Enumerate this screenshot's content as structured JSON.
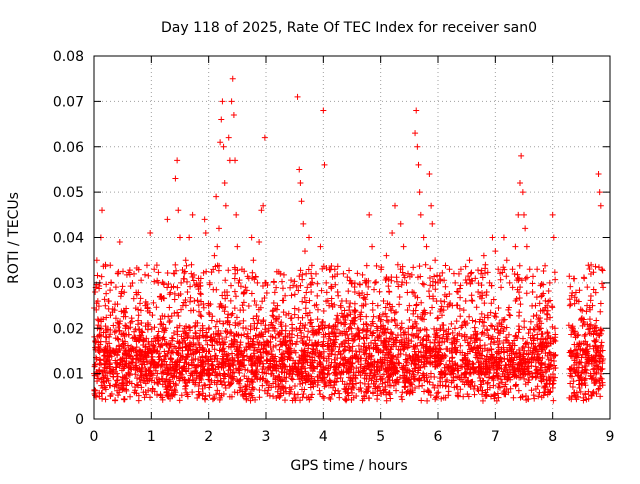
{
  "chart_data": {
    "type": "scatter",
    "title": "Day 118 of 2025, Rate Of TEC Index for receiver san0",
    "xlabel": "GPS time / hours",
    "ylabel": "ROTI / TECUs",
    "xlim": [
      0,
      9
    ],
    "ylim": [
      0,
      0.08
    ],
    "x_ticks": [
      0,
      1,
      2,
      3,
      4,
      5,
      6,
      7,
      8,
      9
    ],
    "x_tick_labels": [
      "0",
      "1",
      "2",
      "3",
      "4",
      "5",
      "6",
      "7",
      "8",
      "9"
    ],
    "y_ticks": [
      0,
      0.01,
      0.02,
      0.03,
      0.04,
      0.05,
      0.06,
      0.07,
      0.08
    ],
    "y_tick_labels": [
      "0",
      "0.01",
      "0.02",
      "0.03",
      "0.04",
      "0.05",
      "0.06",
      "0.07",
      "0.08"
    ],
    "grid": true,
    "legend": "none",
    "marker": "+",
    "color": "#ff0000",
    "series": [
      {
        "points": [
          [
            0.0,
            0.01
          ],
          [
            0.02,
            0.028
          ],
          [
            0.03,
            0.012
          ],
          [
            0.05,
            0.035
          ],
          [
            0.06,
            0.02
          ],
          [
            0.08,
            0.015
          ],
          [
            0.1,
            0.03
          ],
          [
            0.12,
            0.04
          ],
          [
            0.14,
            0.046
          ],
          [
            0.16,
            0.022
          ],
          [
            0.18,
            0.012
          ],
          [
            0.2,
            0.034
          ],
          [
            0.22,
            0.018
          ],
          [
            0.25,
            0.026
          ],
          [
            0.28,
            0.01
          ],
          [
            0.3,
            0.03
          ],
          [
            0.33,
            0.015
          ],
          [
            0.36,
            0.024
          ],
          [
            0.4,
            0.01
          ],
          [
            0.42,
            0.032
          ],
          [
            0.45,
            0.039
          ],
          [
            0.48,
            0.028
          ],
          [
            0.5,
            0.012
          ],
          [
            0.55,
            0.02
          ],
          [
            0.58,
            0.008
          ],
          [
            0.62,
            0.015
          ],
          [
            0.65,
            0.011
          ],
          [
            0.7,
            0.018
          ],
          [
            0.75,
            0.009
          ],
          [
            0.8,
            0.014
          ],
          [
            0.85,
            0.012
          ],
          [
            0.9,
            0.016
          ],
          [
            0.95,
            0.01
          ],
          [
            0.98,
            0.041
          ],
          [
            1.0,
            0.013
          ],
          [
            1.05,
            0.033
          ],
          [
            1.1,
            0.018
          ],
          [
            1.12,
            0.03
          ],
          [
            1.15,
            0.027
          ],
          [
            1.2,
            0.012
          ],
          [
            1.25,
            0.02
          ],
          [
            1.28,
            0.044
          ],
          [
            1.3,
            0.015
          ],
          [
            1.35,
            0.029
          ],
          [
            1.4,
            0.032
          ],
          [
            1.42,
            0.053
          ],
          [
            1.45,
            0.057
          ],
          [
            1.47,
            0.046
          ],
          [
            1.5,
            0.04
          ],
          [
            1.52,
            0.03
          ],
          [
            1.55,
            0.025
          ],
          [
            1.58,
            0.02
          ],
          [
            1.6,
            0.035
          ],
          [
            1.63,
            0.028
          ],
          [
            1.66,
            0.04
          ],
          [
            1.7,
            0.034
          ],
          [
            1.72,
            0.045
          ],
          [
            1.75,
            0.026
          ],
          [
            1.8,
            0.015
          ],
          [
            1.85,
            0.03
          ],
          [
            1.9,
            0.02
          ],
          [
            1.93,
            0.044
          ],
          [
            1.95,
            0.041
          ],
          [
            2.0,
            0.025
          ],
          [
            2.02,
            0.03
          ],
          [
            2.05,
            0.018
          ],
          [
            2.1,
            0.036
          ],
          [
            2.13,
            0.049
          ],
          [
            2.15,
            0.038
          ],
          [
            2.18,
            0.042
          ],
          [
            2.2,
            0.061
          ],
          [
            2.22,
            0.066
          ],
          [
            2.24,
            0.07
          ],
          [
            2.26,
            0.06
          ],
          [
            2.28,
            0.052
          ],
          [
            2.3,
            0.047
          ],
          [
            2.32,
            0.028
          ],
          [
            2.35,
            0.062
          ],
          [
            2.37,
            0.057
          ],
          [
            2.4,
            0.07
          ],
          [
            2.42,
            0.075
          ],
          [
            2.44,
            0.067
          ],
          [
            2.46,
            0.057
          ],
          [
            2.48,
            0.045
          ],
          [
            2.5,
            0.038
          ],
          [
            2.52,
            0.03
          ],
          [
            2.55,
            0.024
          ],
          [
            2.58,
            0.033
          ],
          [
            2.62,
            0.028
          ],
          [
            2.65,
            0.02
          ],
          [
            2.7,
            0.031
          ],
          [
            2.75,
            0.04
          ],
          [
            2.78,
            0.035
          ],
          [
            2.8,
            0.026
          ],
          [
            2.85,
            0.03
          ],
          [
            2.88,
            0.039
          ],
          [
            2.92,
            0.046
          ],
          [
            2.95,
            0.047
          ],
          [
            2.98,
            0.062
          ],
          [
            3.0,
            0.03
          ],
          [
            3.05,
            0.02
          ],
          [
            3.1,
            0.015
          ],
          [
            3.15,
            0.012
          ],
          [
            3.2,
            0.025
          ],
          [
            3.25,
            0.032
          ],
          [
            3.3,
            0.012
          ],
          [
            3.35,
            0.015
          ],
          [
            3.4,
            0.01
          ],
          [
            3.45,
            0.018
          ],
          [
            3.5,
            0.023
          ],
          [
            3.55,
            0.071
          ],
          [
            3.58,
            0.055
          ],
          [
            3.6,
            0.052
          ],
          [
            3.62,
            0.048
          ],
          [
            3.65,
            0.043
          ],
          [
            3.68,
            0.037
          ],
          [
            3.7,
            0.032
          ],
          [
            3.72,
            0.029
          ],
          [
            3.75,
            0.04
          ],
          [
            3.8,
            0.031
          ],
          [
            3.85,
            0.025
          ],
          [
            3.9,
            0.022
          ],
          [
            3.95,
            0.038
          ],
          [
            4.0,
            0.068
          ],
          [
            4.02,
            0.056
          ],
          [
            4.05,
            0.03
          ],
          [
            4.1,
            0.025
          ],
          [
            4.15,
            0.02
          ],
          [
            4.2,
            0.033
          ],
          [
            4.25,
            0.028
          ],
          [
            4.3,
            0.025
          ],
          [
            4.35,
            0.032
          ],
          [
            4.4,
            0.026
          ],
          [
            4.45,
            0.024
          ],
          [
            4.5,
            0.03
          ],
          [
            4.55,
            0.028
          ],
          [
            4.6,
            0.02
          ],
          [
            4.65,
            0.022
          ],
          [
            4.7,
            0.025
          ],
          [
            4.75,
            0.03
          ],
          [
            4.8,
            0.045
          ],
          [
            4.85,
            0.038
          ],
          [
            4.9,
            0.03
          ],
          [
            4.95,
            0.025
          ],
          [
            5.0,
            0.02
          ],
          [
            5.05,
            0.026
          ],
          [
            5.1,
            0.036
          ],
          [
            5.15,
            0.028
          ],
          [
            5.2,
            0.041
          ],
          [
            5.25,
            0.047
          ],
          [
            5.3,
            0.034
          ],
          [
            5.35,
            0.043
          ],
          [
            5.4,
            0.038
          ],
          [
            5.45,
            0.03
          ],
          [
            5.5,
            0.025
          ],
          [
            5.55,
            0.028
          ],
          [
            5.6,
            0.063
          ],
          [
            5.62,
            0.068
          ],
          [
            5.64,
            0.06
          ],
          [
            5.66,
            0.056
          ],
          [
            5.68,
            0.05
          ],
          [
            5.7,
            0.045
          ],
          [
            5.75,
            0.04
          ],
          [
            5.8,
            0.038
          ],
          [
            5.85,
            0.054
          ],
          [
            5.88,
            0.047
          ],
          [
            5.9,
            0.043
          ],
          [
            5.95,
            0.035
          ],
          [
            6.0,
            0.03
          ],
          [
            6.05,
            0.026
          ],
          [
            6.1,
            0.024
          ],
          [
            6.15,
            0.027
          ],
          [
            6.2,
            0.033
          ],
          [
            6.25,
            0.025
          ],
          [
            6.3,
            0.03
          ],
          [
            6.35,
            0.028
          ],
          [
            6.4,
            0.033
          ],
          [
            6.45,
            0.024
          ],
          [
            6.5,
            0.03
          ],
          [
            6.55,
            0.035
          ],
          [
            6.6,
            0.026
          ],
          [
            6.65,
            0.031
          ],
          [
            6.7,
            0.028
          ],
          [
            6.75,
            0.032
          ],
          [
            6.8,
            0.036
          ],
          [
            6.85,
            0.028
          ],
          [
            6.9,
            0.03
          ],
          [
            6.95,
            0.04
          ],
          [
            7.0,
            0.037
          ],
          [
            7.05,
            0.033
          ],
          [
            7.1,
            0.029
          ],
          [
            7.15,
            0.04
          ],
          [
            7.2,
            0.035
          ],
          [
            7.25,
            0.03
          ],
          [
            7.3,
            0.033
          ],
          [
            7.35,
            0.038
          ],
          [
            7.4,
            0.045
          ],
          [
            7.43,
            0.052
          ],
          [
            7.45,
            0.058
          ],
          [
            7.48,
            0.05
          ],
          [
            7.5,
            0.045
          ],
          [
            7.52,
            0.042
          ],
          [
            7.55,
            0.038
          ],
          [
            7.6,
            0.033
          ],
          [
            7.65,
            0.028
          ],
          [
            7.7,
            0.025
          ],
          [
            7.75,
            0.022
          ],
          [
            7.8,
            0.027
          ],
          [
            7.85,
            0.024
          ],
          [
            7.9,
            0.022
          ],
          [
            7.95,
            0.03
          ],
          [
            8.0,
            0.045
          ],
          [
            8.02,
            0.04
          ],
          [
            8.04,
            0.02
          ],
          [
            8.3,
            0.025
          ],
          [
            8.35,
            0.02
          ],
          [
            8.4,
            0.018
          ],
          [
            8.45,
            0.016
          ],
          [
            8.5,
            0.022
          ],
          [
            8.55,
            0.031
          ],
          [
            8.6,
            0.025
          ],
          [
            8.65,
            0.022
          ],
          [
            8.7,
            0.02
          ],
          [
            8.75,
            0.016
          ],
          [
            8.8,
            0.054
          ],
          [
            8.82,
            0.05
          ],
          [
            8.84,
            0.047
          ],
          [
            8.86,
            0.033
          ],
          [
            8.88,
            0.029
          ]
        ]
      }
    ],
    "band": {
      "segments": [
        [
          0.0,
          8.05
        ],
        [
          8.28,
          8.88
        ]
      ],
      "median_y": 0.0125,
      "spread_y": 0.0045,
      "min_y": 0.004,
      "note": ""
    }
  }
}
